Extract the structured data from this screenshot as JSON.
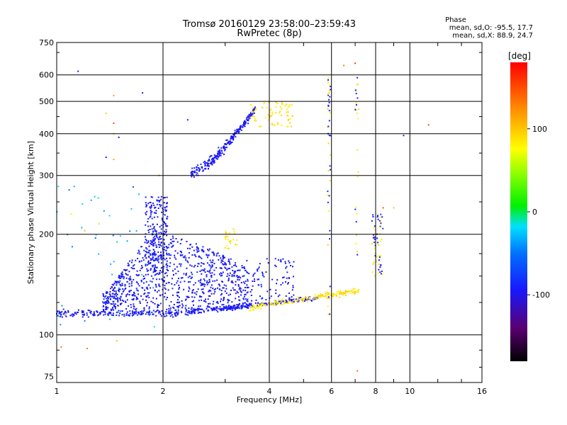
{
  "chart_data": {
    "type": "scatter",
    "title": "Tromsø 20160129 23:58:00–23:59:43",
    "subtitle": "RwPretec (8p)",
    "xlabel": "Frequency [MHz]",
    "ylabel": "Stationary phase Virtual Height [km]",
    "x_scale": "log",
    "y_scale": "log",
    "xlim": [
      1,
      16
    ],
    "ylim": [
      72,
      750
    ],
    "x_ticks": [
      1,
      2,
      4,
      6,
      8,
      10,
      16
    ],
    "y_ticks": [
      75,
      100,
      200,
      300,
      400,
      500,
      600,
      750
    ],
    "x_gridlines": [
      2,
      4,
      6,
      8,
      10
    ],
    "y_gridlines": [
      100,
      200,
      300,
      400,
      500,
      600
    ],
    "grid": true,
    "colorbar": {
      "label": "[deg]",
      "range": [
        -180,
        180
      ],
      "ticks": [
        100,
        0,
        -100
      ]
    },
    "stats": {
      "title": "Phase",
      "line_o": "mean, sd,O: -95.5, 17.7",
      "line_x": "mean, sd,X:  88.9, 24.7"
    },
    "trace_samples": [
      {
        "freq": 1.0,
        "height": 118,
        "phase": -100
      },
      {
        "freq": 1.5,
        "height": 118,
        "phase": -100
      },
      {
        "freq": 2.0,
        "height": 116,
        "phase": -100
      },
      {
        "freq": 3.0,
        "height": 120,
        "phase": -100
      },
      {
        "freq": 4.0,
        "height": 124,
        "phase": -100
      },
      {
        "freq": 5.0,
        "height": 127,
        "phase": 100
      },
      {
        "freq": 6.0,
        "height": 130,
        "phase": 100
      },
      {
        "freq": 7.0,
        "height": 135,
        "phase": 100
      },
      {
        "freq": 1.8,
        "height": 190,
        "phase": -100
      },
      {
        "freq": 2.5,
        "height": 310,
        "phase": -100
      },
      {
        "freq": 3.0,
        "height": 400,
        "phase": -100
      },
      {
        "freq": 3.5,
        "height": 450,
        "phase": -100
      },
      {
        "freq": 4.0,
        "height": 470,
        "phase": 100
      },
      {
        "freq": 8.0,
        "height": 200,
        "phase": -100
      }
    ]
  }
}
